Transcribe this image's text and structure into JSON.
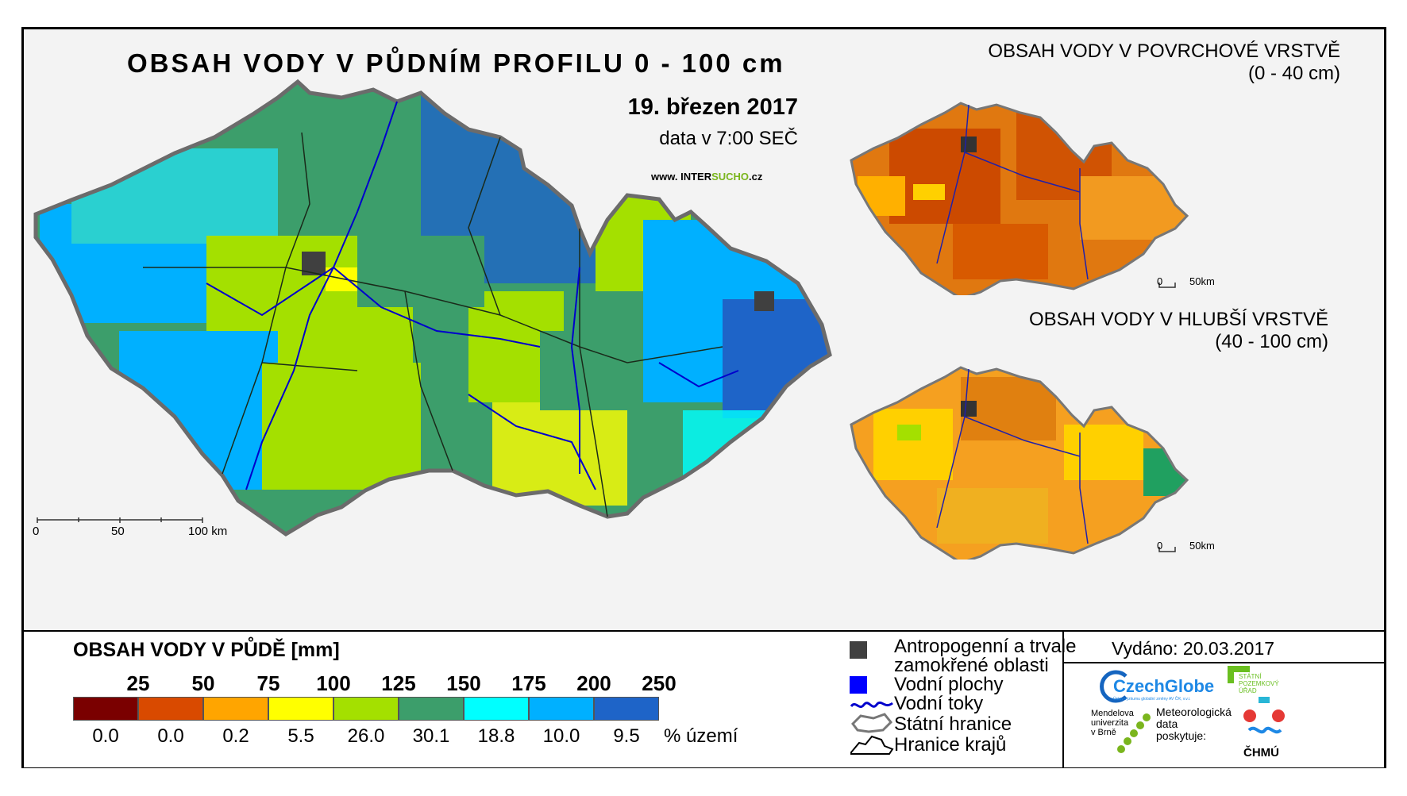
{
  "main_map": {
    "title": "OBSAH VODY V PŮDNÍM PROFILU 0 - 100 cm",
    "date": "19. březen 2017",
    "time": "data v 7:00 SEČ",
    "url_prefix": "www. INTER",
    "url_highlight": "SUCHO",
    "url_suffix": ".cz",
    "scale": {
      "ticks": [
        "0",
        "50",
        "100 km"
      ]
    }
  },
  "surface_map": {
    "title_line1": "OBSAH VODY V POVRCHOVÉ VRSTVĚ",
    "title_line2": "(0 - 40 cm)",
    "scale": {
      "ticks": [
        "0",
        "50km"
      ]
    }
  },
  "deep_map": {
    "title_line1": "OBSAH VODY V HLUBŠÍ VRSTVĚ",
    "title_line2": "(40 - 100 cm)",
    "scale": {
      "ticks": [
        "0",
        "50km"
      ]
    }
  },
  "legend": {
    "title": "OBSAH VODY V PŮDĚ [mm]",
    "boundaries": [
      "25",
      "50",
      "75",
      "100",
      "125",
      "150",
      "175",
      "200",
      "250"
    ],
    "bins": [
      {
        "color": "#7a0000",
        "percent": "0.0"
      },
      {
        "color": "#d94a00",
        "percent": "0.0"
      },
      {
        "color": "#ffa500",
        "percent": "0.2"
      },
      {
        "color": "#ffff00",
        "percent": "5.5"
      },
      {
        "color": "#a4e000",
        "percent": "26.0"
      },
      {
        "color": "#3c9e6b",
        "percent": "30.1"
      },
      {
        "color": "#00ffff",
        "percent": "18.8"
      },
      {
        "color": "#00b0ff",
        "percent": "10.0"
      },
      {
        "color": "#1e64c8",
        "percent": "9.5"
      }
    ],
    "percent_unit": "% území",
    "symbols": {
      "anthropogenic_line1": "Antropogenní a trvale",
      "anthropogenic_line2": "zamokřené oblasti",
      "anthropogenic_color": "#404040",
      "water_bodies": "Vodní plochy",
      "water_color": "#0000ff",
      "rivers": "Vodní toky",
      "river_color": "#0000cc",
      "state_border": "Státní hranice",
      "region_border": "Hranice krajů"
    }
  },
  "issued": "Vydáno: 20.03.2017",
  "logos": {
    "czechglobe": "CzechGlobe",
    "czechglobe_sub": "Ústav výzkumu globální změny AV ČR, v.v.i.",
    "spu_line1": "STÁTNÍ",
    "spu_line2": "POZEMKOVÝ",
    "spu_line3": "ÚŘAD",
    "mendelu_line1": "Mendelova",
    "mendelu_line2": "univerzita",
    "mendelu_line3": "v Brně",
    "meteo_line1": "Meteorologická",
    "meteo_line2": "data",
    "meteo_line3": "poskytuje:",
    "chmu": "ČHMÚ"
  }
}
